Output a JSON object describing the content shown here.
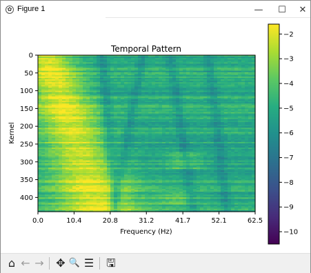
{
  "window": {
    "title": "Figure 1",
    "app_icon_glyph": "✿",
    "minimize_glyph": "—",
    "maximize_glyph": "☐",
    "close_glyph": "✕"
  },
  "chart_data": {
    "type": "heatmap",
    "title": "Temporal Pattern",
    "xlabel": "Frequency (Hz)",
    "ylabel": "Kernel",
    "x_ticks": [
      "0.0",
      "10.4",
      "20.8",
      "31.2",
      "41.7",
      "52.1",
      "62.5"
    ],
    "y_ticks": [
      "0",
      "50",
      "100",
      "150",
      "200",
      "250",
      "300",
      "350",
      "400"
    ],
    "xlim": [
      0,
      62.5
    ],
    "ylim": [
      440,
      0
    ],
    "colorbar": {
      "ticks": [
        "-2",
        "-3",
        "-4",
        "-5",
        "-6",
        "-7",
        "-8",
        "-9",
        "-10"
      ],
      "range": [
        -10.5,
        -1.6
      ],
      "colormap": "viridis"
    }
  },
  "toolbar": {
    "home_icon": "⌂",
    "back_icon": "←",
    "forward_icon": "→",
    "pan_icon": "✥",
    "zoom_icon": "🔍",
    "configure_icon": "☰",
    "save_icon": "🖫"
  }
}
